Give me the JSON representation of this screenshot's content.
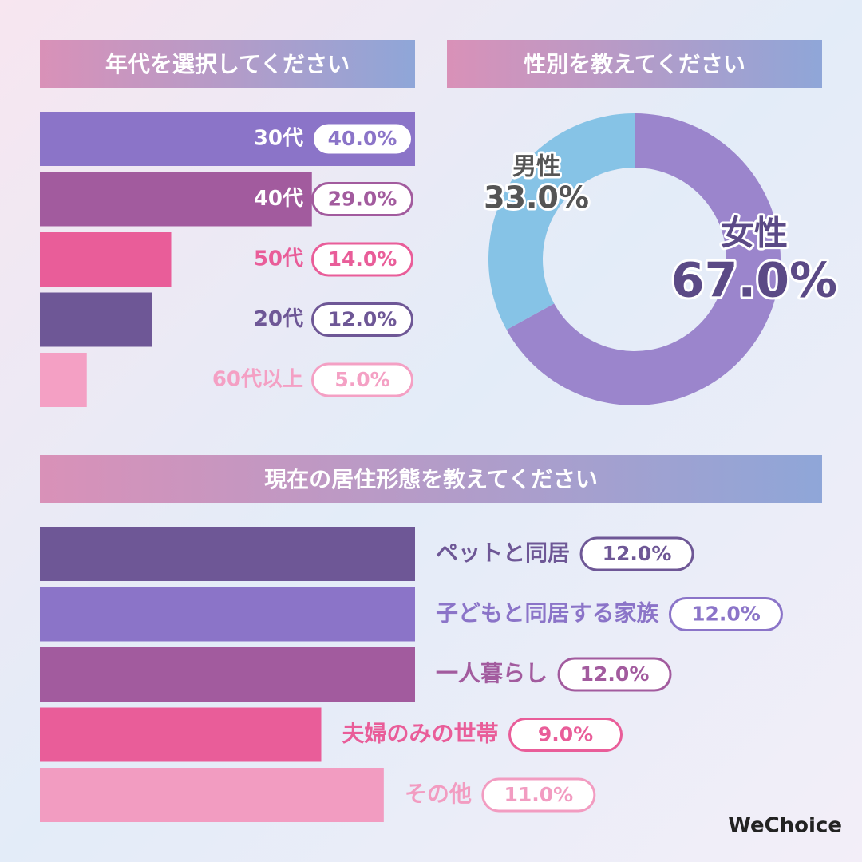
{
  "chart_data": [
    {
      "type": "bar",
      "title": "年代を選択してください",
      "categories": [
        "30代",
        "40代",
        "50代",
        "20代",
        "60代以上"
      ],
      "values": [
        40,
        29,
        14,
        12,
        5
      ],
      "value_labels": [
        "40.0%",
        "29.0%",
        "14.0%",
        "12.0%",
        "5.0%"
      ],
      "colors": [
        "#8b74c8",
        "#a25b9e",
        "#e95d99",
        "#6e5796",
        "#f4a0c4"
      ]
    },
    {
      "type": "pie",
      "title": "性別を教えてください",
      "categories": [
        "女性",
        "男性"
      ],
      "values": [
        67,
        33
      ],
      "value_labels": [
        "67.0%",
        "33.0%"
      ],
      "colors": [
        "#9b85cc",
        "#86c3e6"
      ]
    },
    {
      "type": "bar",
      "title": "現在の居住形態を教えてください",
      "categories": [
        "ペットと同居",
        "子どもと同居する家族",
        "一人暮らし",
        "夫婦のみの世帯",
        "その他"
      ],
      "values": [
        12,
        12,
        12,
        9,
        11
      ],
      "value_labels": [
        "12.0%",
        "12.0%",
        "12.0%",
        "9.0%",
        "11.0%"
      ],
      "colors": [
        "#6e5796",
        "#8b74c8",
        "#a25b9e",
        "#e95d99",
        "#f29cc1"
      ]
    }
  ],
  "brand": "WeChoice"
}
